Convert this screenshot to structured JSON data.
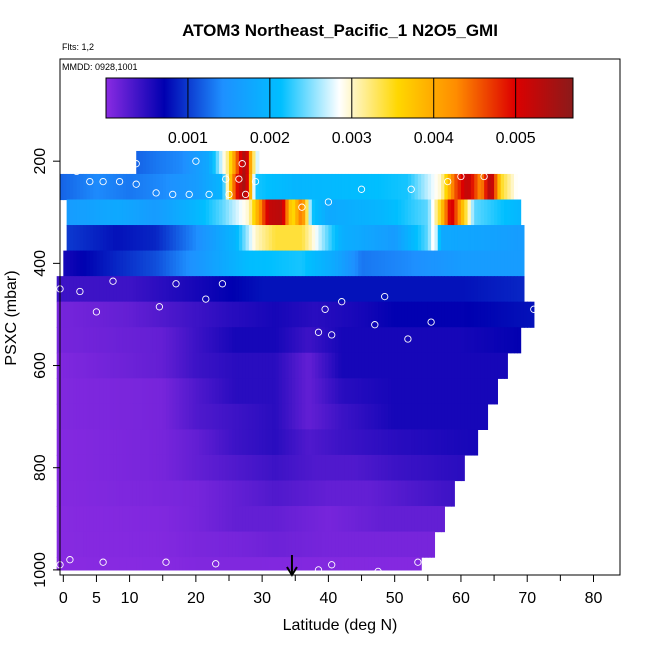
{
  "chart_data": {
    "type": "heatmap",
    "title": "ATOM3 Northeast_Pacific_1 N2O5_GMI",
    "flights_label": "Flts: 1,2",
    "dates_label": "MMDD: 0928,1001",
    "xlabel": "Latitude (deg N)",
    "ylabel": "PSXC (mbar)",
    "xlim": [
      -0.5,
      84
    ],
    "ylim": [
      1010,
      0
    ],
    "x_ticks": [
      0,
      5,
      10,
      20,
      30,
      40,
      50,
      60,
      70,
      80
    ],
    "y_ticks": [
      200,
      400,
      600,
      800,
      1000
    ],
    "colorbar": {
      "range": [
        0.0,
        0.0057
      ],
      "ticks": [
        0.001,
        0.002,
        0.003,
        0.004,
        0.005
      ],
      "tick_labels": [
        "0.001",
        "0.002",
        "0.003",
        "0.004",
        "0.005"
      ],
      "colors": [
        "#8a2be2",
        "#0000b0",
        "#1e90ff",
        "#00bfff",
        "#ffffff",
        "#ffd700",
        "#ff8c00",
        "#dd0000",
        "#8b1a1a"
      ]
    },
    "arrow_latitude": 34.5,
    "levels": [
      {
        "p": 200,
        "lat": [
          11,
          29.5
        ],
        "vals": [
          [
            11,
            0.0012
          ],
          [
            14,
            0.0013
          ],
          [
            18,
            0.0014
          ],
          [
            22,
            0.0018
          ],
          [
            25,
            0.0033
          ],
          [
            26.5,
            0.0048
          ],
          [
            27.5,
            0.0056
          ],
          [
            28.5,
            0.0035
          ],
          [
            29.5,
            0.0025
          ]
        ]
      },
      {
        "p": 250,
        "lat": [
          -0.5,
          68.5
        ],
        "vals": [
          [
            -0.5,
            0.0012
          ],
          [
            5,
            0.0014
          ],
          [
            10,
            0.0013
          ],
          [
            15,
            0.0014
          ],
          [
            20,
            0.0016
          ],
          [
            24,
            0.002
          ],
          [
            26,
            0.0048
          ],
          [
            27.5,
            0.0056
          ],
          [
            29,
            0.0022
          ],
          [
            35,
            0.002
          ],
          [
            45,
            0.0021
          ],
          [
            52,
            0.0022
          ],
          [
            57,
            0.003
          ],
          [
            59,
            0.0045
          ],
          [
            61,
            0.0053
          ],
          [
            63,
            0.0042
          ],
          [
            64.5,
            0.0055
          ],
          [
            66,
            0.0035
          ],
          [
            68.5,
            0.0028
          ]
        ]
      },
      {
        "p": 300,
        "lat": [
          0.5,
          69
        ],
        "vals": [
          [
            0.5,
            0.0016
          ],
          [
            8,
            0.0018
          ],
          [
            14,
            0.0016
          ],
          [
            20,
            0.002
          ],
          [
            24,
            0.0024
          ],
          [
            28,
            0.003
          ],
          [
            31,
            0.0052
          ],
          [
            33,
            0.0053
          ],
          [
            34.5,
            0.0034
          ],
          [
            36,
            0.0045
          ],
          [
            37.5,
            0.0022
          ],
          [
            40,
            0.0018
          ],
          [
            48,
            0.002
          ],
          [
            55,
            0.0024
          ],
          [
            57,
            0.0036
          ],
          [
            58.5,
            0.0052
          ],
          [
            60,
            0.004
          ],
          [
            62,
            0.0024
          ],
          [
            69,
            0.002
          ]
        ]
      },
      {
        "p": 350,
        "lat": [
          0.5,
          69.5
        ],
        "vals": [
          [
            0.5,
            0.001
          ],
          [
            8,
            0.0008
          ],
          [
            14,
            0.0009
          ],
          [
            20,
            0.0014
          ],
          [
            26,
            0.002
          ],
          [
            29,
            0.003
          ],
          [
            32,
            0.0034
          ],
          [
            36,
            0.0034
          ],
          [
            39,
            0.0026
          ],
          [
            42,
            0.0019
          ],
          [
            50,
            0.0016
          ],
          [
            55,
            0.0024
          ],
          [
            56,
            0.003
          ],
          [
            57,
            0.0018
          ],
          [
            65,
            0.0017
          ],
          [
            69.5,
            0.0016
          ]
        ]
      },
      {
        "p": 400,
        "lat": [
          0,
          69.5
        ],
        "vals": [
          [
            0,
            0.0006
          ],
          [
            8,
            0.0009
          ],
          [
            14,
            0.0011
          ],
          [
            20,
            0.0015
          ],
          [
            28,
            0.0021
          ],
          [
            36,
            0.0022
          ],
          [
            41,
            0.0018
          ],
          [
            45,
            0.0013
          ],
          [
            52,
            0.0014
          ],
          [
            60,
            0.0016
          ],
          [
            69.5,
            0.0016
          ]
        ]
      },
      {
        "p": 450,
        "lat": [
          -1,
          69.5
        ],
        "vals": [
          [
            -1,
            0.0004
          ],
          [
            10,
            0.0004
          ],
          [
            20,
            0.0006
          ],
          [
            30,
            0.0008
          ],
          [
            38,
            0.0008
          ],
          [
            45,
            0.0008
          ],
          [
            52,
            0.0008
          ],
          [
            60,
            0.0008
          ],
          [
            69.5,
            0.0009
          ]
        ]
      },
      {
        "p": 500,
        "lat": [
          -1,
          71
        ],
        "vals": [
          [
            -1,
            0.0001
          ],
          [
            10,
            0.0002
          ],
          [
            20,
            0.0004
          ],
          [
            25,
            0.0005
          ],
          [
            32,
            0.0006
          ],
          [
            38,
            0.0005
          ],
          [
            45,
            0.0006
          ],
          [
            50,
            0.0007
          ],
          [
            60,
            0.0007
          ],
          [
            71,
            0.0008
          ]
        ]
      },
      {
        "p": 550,
        "lat": [
          -1,
          69
        ],
        "vals": [
          [
            -1,
            0.0001
          ],
          [
            15,
            0.0002
          ],
          [
            20,
            0.0004
          ],
          [
            26,
            0.0006
          ],
          [
            32,
            0.0006
          ],
          [
            37,
            0.0004
          ],
          [
            42,
            0.0006
          ],
          [
            50,
            0.0006
          ],
          [
            60,
            0.0006
          ],
          [
            69,
            0.0007
          ]
        ]
      },
      {
        "p": 600,
        "lat": [
          -1,
          67
        ],
        "vals": [
          [
            -1,
            5e-05
          ],
          [
            15,
            0.0002
          ],
          [
            20,
            0.0004
          ],
          [
            26,
            0.0005
          ],
          [
            32,
            0.0005
          ],
          [
            37,
            0.0002
          ],
          [
            42,
            0.0006
          ],
          [
            50,
            0.0006
          ],
          [
            67,
            0.0006
          ]
        ]
      },
      {
        "p": 650,
        "lat": [
          -1,
          65.5
        ],
        "vals": [
          [
            -1,
            5e-05
          ],
          [
            15,
            0.0001
          ],
          [
            20,
            0.0003
          ],
          [
            26,
            0.0005
          ],
          [
            32,
            0.0005
          ],
          [
            37,
            0.0002
          ],
          [
            42,
            0.0005
          ],
          [
            50,
            0.0006
          ],
          [
            65.5,
            0.0006
          ]
        ]
      },
      {
        "p": 700,
        "lat": [
          -1,
          64
        ],
        "vals": [
          [
            -1,
            5e-05
          ],
          [
            15,
            0.0001
          ],
          [
            20,
            0.0003
          ],
          [
            26,
            0.0004
          ],
          [
            32,
            0.0005
          ],
          [
            37,
            0.0002
          ],
          [
            42,
            0.0004
          ],
          [
            50,
            0.0006
          ],
          [
            64,
            0.0006
          ]
        ]
      },
      {
        "p": 750,
        "lat": [
          -1,
          62.5
        ],
        "vals": [
          [
            -1,
            3e-05
          ],
          [
            15,
            0.0001
          ],
          [
            20,
            0.0002
          ],
          [
            26,
            0.0004
          ],
          [
            32,
            0.0005
          ],
          [
            37,
            0.0003
          ],
          [
            42,
            0.0004
          ],
          [
            50,
            0.0005
          ],
          [
            62.5,
            0.0006
          ]
        ]
      },
      {
        "p": 800,
        "lat": [
          -1,
          60.5
        ],
        "vals": [
          [
            -1,
            3e-05
          ],
          [
            15,
            0.0001
          ],
          [
            20,
            0.0002
          ],
          [
            26,
            0.0003
          ],
          [
            32,
            0.0004
          ],
          [
            38,
            0.0003
          ],
          [
            44,
            0.0003
          ],
          [
            50,
            0.0004
          ],
          [
            60.5,
            0.0005
          ]
        ]
      },
      {
        "p": 850,
        "lat": [
          -1,
          59
        ],
        "vals": [
          [
            -1,
            3e-05
          ],
          [
            15,
            8e-05
          ],
          [
            20,
            0.0001
          ],
          [
            26,
            0.0002
          ],
          [
            32,
            0.0003
          ],
          [
            40,
            0.0002
          ],
          [
            46,
            0.0002
          ],
          [
            52,
            0.0003
          ],
          [
            59,
            0.0004
          ]
        ]
      },
      {
        "p": 900,
        "lat": [
          -1,
          57.5
        ],
        "vals": [
          [
            -1,
            2e-05
          ],
          [
            15,
            5e-05
          ],
          [
            20,
            0.0001
          ],
          [
            26,
            0.0002
          ],
          [
            32,
            0.0002
          ],
          [
            40,
            0.0001
          ],
          [
            48,
            0.0002
          ],
          [
            57.5,
            0.0002
          ]
        ]
      },
      {
        "p": 950,
        "lat": [
          -1,
          56
        ],
        "vals": [
          [
            -1,
            2e-05
          ],
          [
            15,
            4e-05
          ],
          [
            20,
            8e-05
          ],
          [
            26,
            0.0001
          ],
          [
            32,
            0.00015
          ],
          [
            40,
            0.0001
          ],
          [
            48,
            0.0001
          ],
          [
            56,
            0.0001
          ]
        ]
      },
      {
        "p": 1000,
        "lat": [
          -1,
          54
        ],
        "vals": [
          [
            -1,
            1e-05
          ],
          [
            15,
            2e-05
          ],
          [
            20,
            5e-05
          ],
          [
            30,
            5e-05
          ],
          [
            40,
            4e-05
          ],
          [
            54,
            3e-05
          ]
        ]
      }
    ],
    "obs_points": [
      [
        11,
        205
      ],
      [
        20,
        200
      ],
      [
        27,
        205
      ],
      [
        2,
        220
      ],
      [
        4,
        240
      ],
      [
        6,
        240
      ],
      [
        8.5,
        240
      ],
      [
        11,
        245
      ],
      [
        24.5,
        235
      ],
      [
        26.5,
        235
      ],
      [
        29,
        240
      ],
      [
        45,
        255
      ],
      [
        52.5,
        255
      ],
      [
        58,
        240
      ],
      [
        60,
        230
      ],
      [
        63.5,
        230
      ],
      [
        14,
        262
      ],
      [
        16.5,
        265
      ],
      [
        19,
        265
      ],
      [
        22,
        265
      ],
      [
        25,
        265
      ],
      [
        27.5,
        265
      ],
      [
        36,
        290
      ],
      [
        40,
        280
      ],
      [
        -0.5,
        450
      ],
      [
        2.5,
        455
      ],
      [
        7.5,
        435
      ],
      [
        17,
        440
      ],
      [
        24,
        440
      ],
      [
        21.5,
        470
      ],
      [
        14.5,
        485
      ],
      [
        5,
        495
      ],
      [
        42,
        475
      ],
      [
        39.5,
        490
      ],
      [
        48.5,
        465
      ],
      [
        47,
        520
      ],
      [
        38.5,
        535
      ],
      [
        40.5,
        540
      ],
      [
        52,
        548
      ],
      [
        55.5,
        515
      ],
      [
        71,
        490
      ],
      [
        1,
        980
      ],
      [
        -0.5,
        990
      ],
      [
        6,
        985
      ],
      [
        15.5,
        985
      ],
      [
        23,
        988
      ],
      [
        38.5,
        1000
      ],
      [
        40.5,
        990
      ],
      [
        47.5,
        1003
      ],
      [
        53.5,
        985
      ]
    ]
  }
}
